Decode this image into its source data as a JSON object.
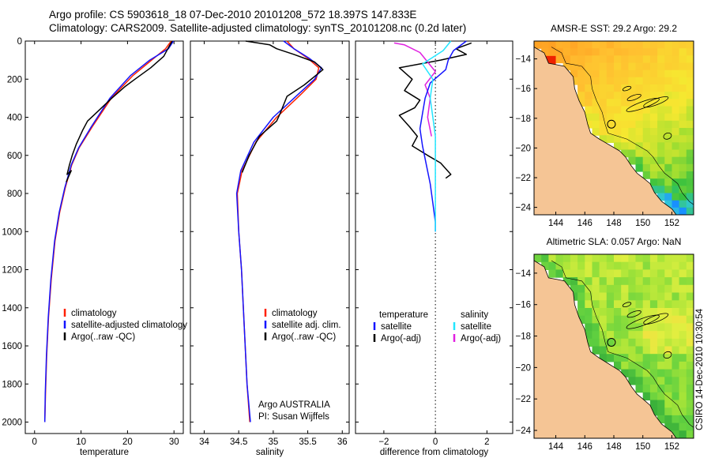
{
  "header": {
    "line1": "Argo profile: CS 5903618_18 07-Dec-2010 20101208_572 18.397S 147.833E",
    "line2": "Climatology: CARS2009. Satellite-adjusted climatology: synTS_20101208.nc (0.2d later)"
  },
  "stamp": "CSIRO 14-Dec-2010 10:30:54",
  "colors": {
    "climatology": "#ff2000",
    "satellite": "#1414ff",
    "argo": "#000000",
    "satellite_salinity": "#22e6ff",
    "argo_salinity": "#e020e0",
    "land": "#f5c595",
    "warm": "#ee2200",
    "green": "#22aa33"
  },
  "chart_data": [
    {
      "id": "temperature",
      "type": "line",
      "xlabel": "temperature",
      "ylabel": "",
      "xlim": [
        -2,
        32
      ],
      "ylim": [
        2060,
        0
      ],
      "xticks": [
        0,
        10,
        20,
        30
      ],
      "yticks": [
        0,
        200,
        400,
        600,
        800,
        1000,
        1200,
        1400,
        1600,
        1800,
        2000
      ],
      "legend": {
        "position": "lower-right",
        "entries": [
          "climatology",
          "satellite-adjusted climatology",
          "Argo(..raw -QC)"
        ]
      },
      "series": [
        {
          "name": "climatology",
          "color_key": "climatology",
          "x": [
            29.4,
            28.2,
            25.2,
            21.2,
            16.5,
            12.4,
            9.6,
            8.0,
            6.6,
            5.4,
            4.4,
            3.6,
            3.0,
            2.6,
            2.35,
            2.2
          ],
          "y": [
            0,
            40,
            100,
            180,
            300,
            450,
            560,
            650,
            770,
            900,
            1050,
            1250,
            1450,
            1650,
            1850,
            2000
          ]
        },
        {
          "name": "satellite-adjusted climatology",
          "color_key": "satellite",
          "x": [
            29.9,
            28.8,
            24.8,
            20.7,
            16.2,
            12.2,
            9.5,
            7.9,
            6.5,
            5.3,
            4.3,
            3.5,
            2.95,
            2.55,
            2.3,
            2.2
          ],
          "y": [
            0,
            40,
            100,
            180,
            300,
            450,
            560,
            650,
            770,
            900,
            1050,
            1250,
            1450,
            1650,
            1850,
            2000
          ]
        },
        {
          "name": "Argo(..raw -QC)",
          "color_key": "argo",
          "x": [
            29.6,
            28.9,
            27.8,
            25.0,
            21.6,
            19.4,
            16.6,
            14.0,
            11.4,
            10.3,
            9.0,
            8.1,
            7.5,
            7.0,
            7.9,
            6.8
          ],
          "y": [
            0,
            30,
            80,
            140,
            200,
            240,
            300,
            360,
            420,
            470,
            540,
            600,
            650,
            700,
            680,
            740
          ]
        }
      ]
    },
    {
      "id": "salinity",
      "type": "line",
      "xlabel": "salinity",
      "ylabel": "",
      "xlim": [
        33.8,
        36.1
      ],
      "ylim": [
        2060,
        0
      ],
      "xticks": [
        34,
        34.5,
        35,
        35.5,
        36
      ],
      "yticks": [
        0,
        200,
        400,
        600,
        800,
        1000,
        1200,
        1400,
        1600,
        1800,
        2000
      ],
      "legend": {
        "position": "lower-right",
        "entries": [
          "climatology",
          "satellite adj. clim.",
          "Argo(..raw -QC)"
        ]
      },
      "annotation": {
        "line1": "Argo AUSTRALIA",
        "line2": "PI: Susan Wijffels"
      },
      "series": [
        {
          "name": "climatology",
          "color_key": "climatology",
          "x": [
            35.2,
            35.3,
            35.5,
            35.66,
            35.62,
            35.4,
            35.05,
            34.75,
            34.55,
            34.48,
            34.5,
            34.54,
            34.58,
            34.62,
            34.66
          ],
          "y": [
            0,
            40,
            90,
            140,
            200,
            280,
            400,
            530,
            680,
            800,
            1000,
            1200,
            1500,
            1800,
            2000
          ]
        },
        {
          "name": "satellite adj. clim.",
          "color_key": "satellite",
          "x": [
            35.15,
            35.3,
            35.52,
            35.7,
            35.6,
            35.36,
            35.0,
            34.72,
            34.53,
            34.47,
            34.5,
            34.54,
            34.58,
            34.62,
            34.67
          ],
          "y": [
            0,
            40,
            90,
            140,
            200,
            280,
            400,
            530,
            680,
            800,
            1000,
            1200,
            1500,
            1800,
            2000
          ]
        },
        {
          "name": "Argo(..raw -QC)",
          "color_key": "argo",
          "x": [
            34.6,
            34.95,
            35.05,
            35.3,
            35.6,
            35.72,
            35.45,
            35.2,
            35.1,
            35.05,
            34.8,
            34.65,
            34.55
          ],
          "y": [
            0,
            20,
            40,
            70,
            110,
            150,
            230,
            290,
            380,
            420,
            500,
            600,
            690
          ]
        }
      ]
    },
    {
      "id": "difference",
      "type": "line",
      "xlabel": "difference from climatology",
      "ylabel": "",
      "xlim": [
        -3.1,
        3.0
      ],
      "ylim": [
        2060,
        0
      ],
      "xticks": [
        -2,
        0,
        2
      ],
      "yticks": [
        0,
        200,
        400,
        600,
        800,
        1000,
        1200,
        1400,
        1600,
        1800,
        2000
      ],
      "legend": {
        "position": "lower-right",
        "headers": [
          "temperature",
          "salinity"
        ],
        "entries": [
          "satellite",
          "Argo(-adj)",
          "satellite",
          "Argo(-adj)"
        ]
      },
      "series": [
        {
          "name": "temperature satellite",
          "color_key": "satellite",
          "x": [
            1.2,
            0.7,
            0.5,
            0.4,
            -0.2,
            -0.4,
            -0.5,
            -0.6,
            -0.5,
            -0.35,
            -0.2,
            -0.1,
            0.0,
            0.0
          ],
          "y": [
            0,
            50,
            100,
            150,
            220,
            300,
            380,
            460,
            550,
            650,
            750,
            850,
            950,
            1000
          ]
        },
        {
          "name": "temperature Argo(-adj)",
          "color_key": "argo",
          "x": [
            1.4,
            0.8,
            1.2,
            0.2,
            -1.4,
            -0.9,
            -1.2,
            -0.6,
            -0.8,
            -1.4,
            -1.0,
            -0.7,
            -0.9,
            -0.3,
            0.2,
            0.6,
            0.4
          ],
          "y": [
            10,
            40,
            70,
            100,
            140,
            200,
            260,
            310,
            350,
            390,
            450,
            500,
            550,
            600,
            640,
            700,
            720
          ]
        },
        {
          "name": "salinity satellite",
          "color_key": "satellite_salinity",
          "x": [
            0.6,
            0.3,
            -0.5,
            -0.1,
            -0.2,
            -0.1,
            0.0,
            0.0,
            0.0,
            0.0
          ],
          "y": [
            0,
            50,
            120,
            200,
            300,
            400,
            500,
            600,
            800,
            1000
          ]
        },
        {
          "name": "salinity Argo(-adj)",
          "color_key": "argo_salinity",
          "x": [
            -1.6,
            -1.2,
            -0.6,
            -0.3,
            0.0,
            -0.4,
            -0.2,
            -0.3,
            -0.15
          ],
          "y": [
            10,
            20,
            60,
            110,
            160,
            230,
            300,
            400,
            500
          ]
        }
      ]
    },
    {
      "id": "sst-map",
      "type": "heatmap",
      "title": "AMSR-E SST: 29.2 Argo: 29.2",
      "xlim": [
        142.5,
        153.5
      ],
      "ylim": [
        -24.5,
        -12.8
      ],
      "xticks": [
        144,
        146,
        148,
        150,
        152
      ],
      "yticks": [
        -14,
        -16,
        -18,
        -20,
        -22,
        -24
      ],
      "profile_location": {
        "lon": 147.833,
        "lat": -18.397
      }
    },
    {
      "id": "sla-map",
      "type": "heatmap",
      "title": "Altimetric SLA: 0.057 Argo: NaN",
      "xlim": [
        142.5,
        153.5
      ],
      "ylim": [
        -24.5,
        -12.8
      ],
      "xticks": [
        144,
        146,
        148,
        150,
        152
      ],
      "yticks": [
        -14,
        -16,
        -18,
        -20,
        -22,
        -24
      ],
      "profile_location": {
        "lon": 147.833,
        "lat": -18.397
      }
    }
  ]
}
